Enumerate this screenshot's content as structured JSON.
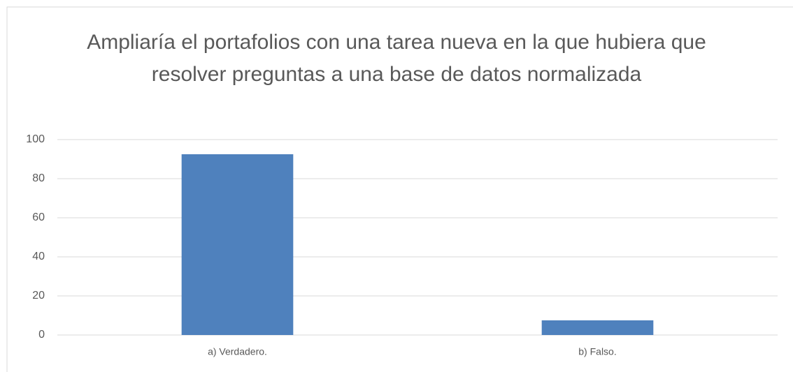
{
  "chart_data": {
    "type": "bar",
    "title": "Ampliaría el portafolios con una tarea nueva en la que hubiera que resolver preguntas a una base de datos normalizada",
    "categories": [
      "a) Verdadero.",
      "b) Falso."
    ],
    "values": [
      92.5,
      7.5
    ],
    "color": "#4f81bd",
    "ylim": [
      0,
      100
    ],
    "yticks": [
      0,
      20,
      40,
      60,
      80,
      100
    ],
    "grid": true
  }
}
